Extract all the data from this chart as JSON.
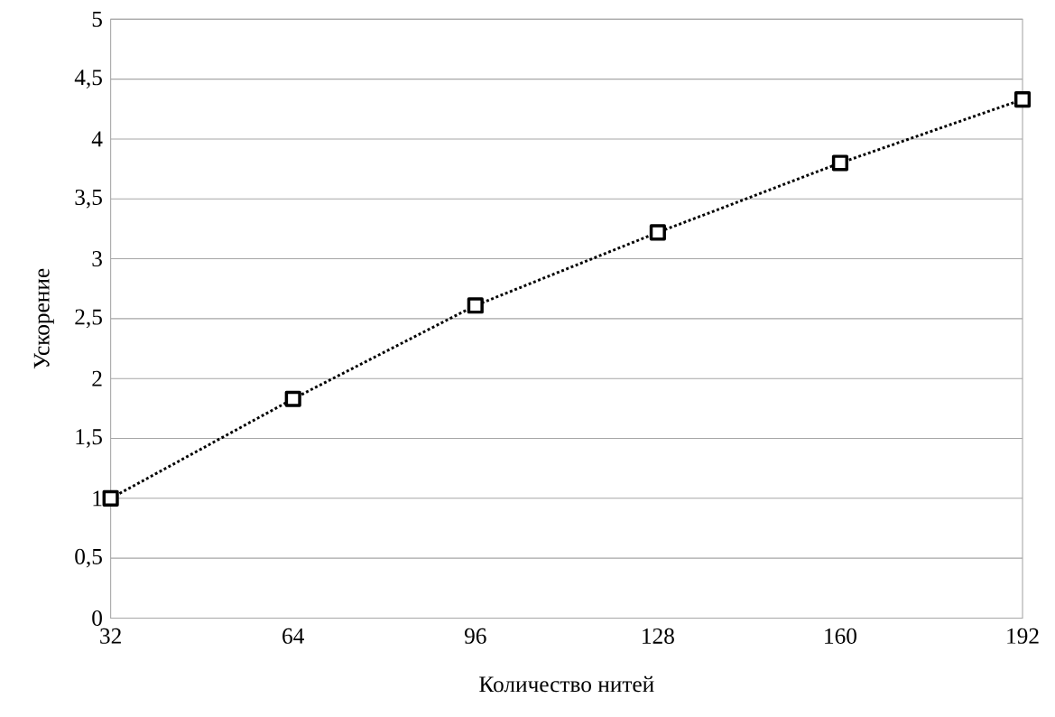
{
  "chart_data": {
    "type": "line",
    "xlabel": "Количество нитей",
    "ylabel": "Ускорение",
    "x": [
      32,
      64,
      96,
      128,
      160,
      192
    ],
    "series": [
      {
        "color": "#000000",
        "values": [
          1.0,
          1.83,
          2.61,
          3.22,
          3.8,
          4.33
        ]
      }
    ],
    "xlim": [
      32,
      192
    ],
    "xticks": [
      32,
      64,
      96,
      128,
      160,
      192
    ],
    "ylim": [
      0,
      5
    ],
    "yticks": [
      0,
      {
        "value": 0.5,
        "label": "0,5"
      },
      1,
      {
        "value": 1.5,
        "label": "1,5"
      },
      2,
      {
        "value": 2.5,
        "label": "2,5"
      },
      3,
      {
        "value": 3.5,
        "label": "3,5"
      },
      4,
      {
        "value": 4.5,
        "label": "4,5"
      },
      5
    ],
    "grid": "y",
    "marker": "square",
    "line_style": "dotted"
  }
}
